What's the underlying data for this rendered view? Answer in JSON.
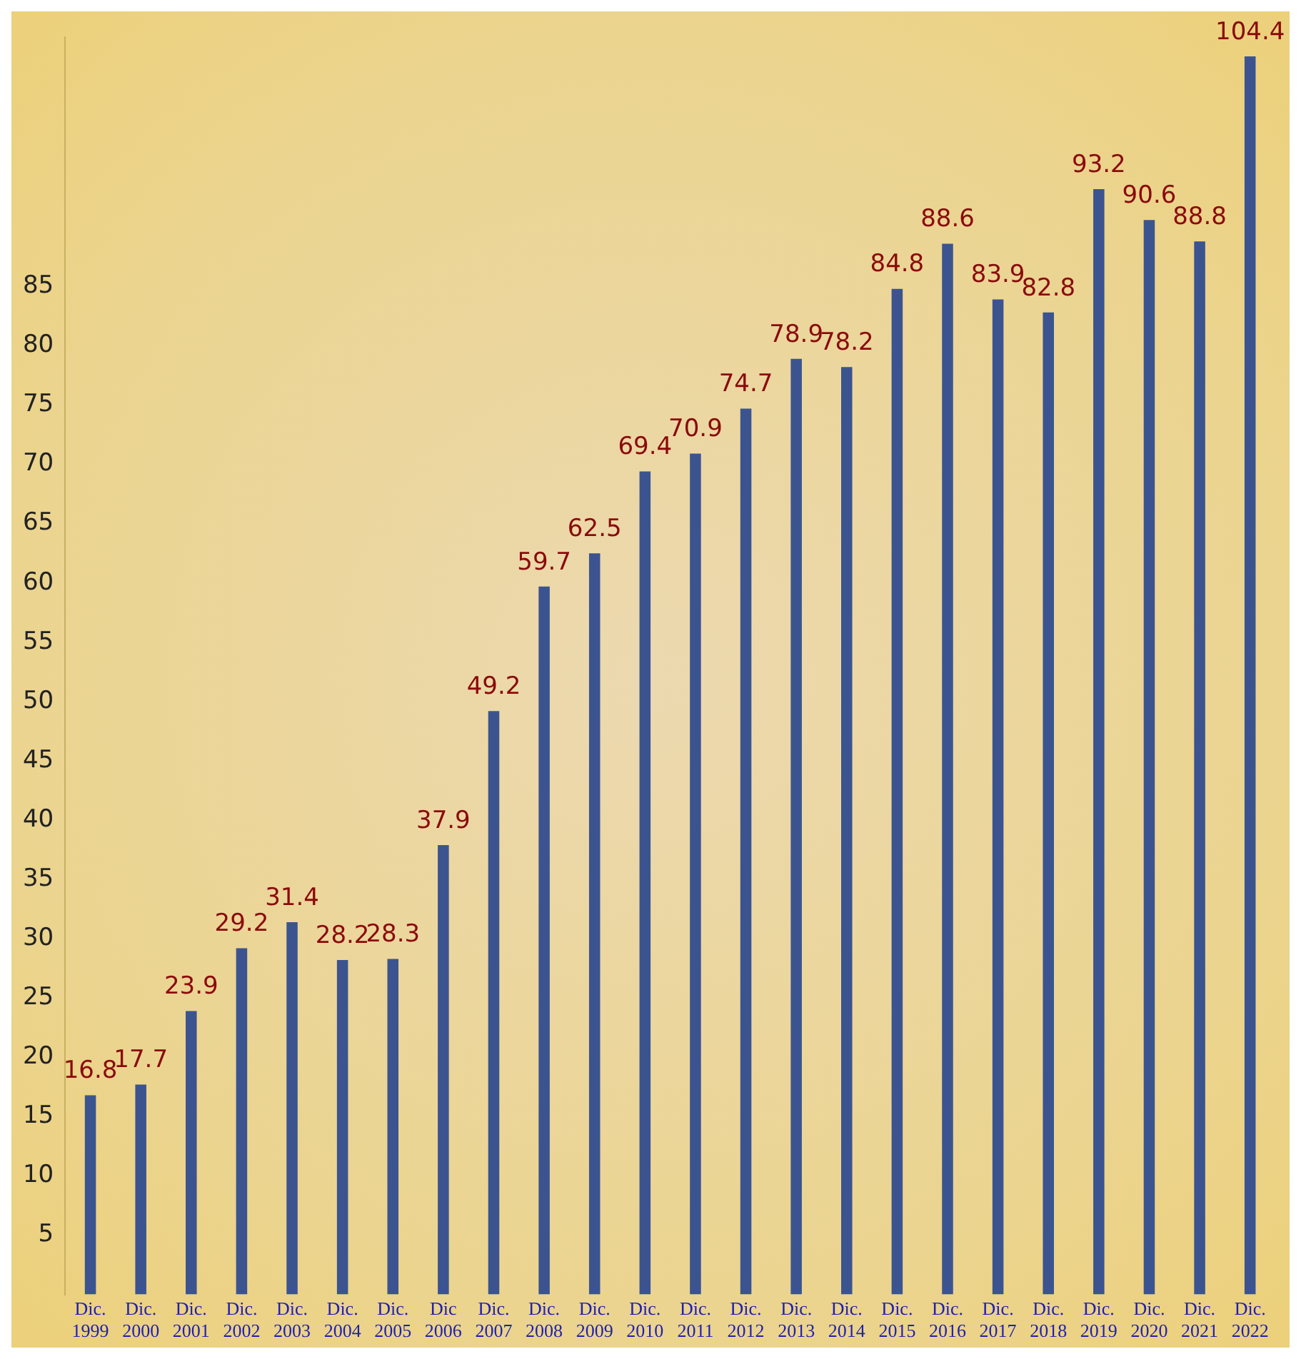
{
  "chart_data": {
    "type": "bar",
    "categories": [
      "Dic. 1999",
      "Dic. 2000",
      "Dic. 2001",
      "Dic. 2002",
      "Dic. 2003",
      "Dic. 2004",
      "Dic. 2005",
      "Dic 2006",
      "Dic. 2007",
      "Dic. 2008",
      "Dic. 2009",
      "Dic. 2010",
      "Dic. 2011",
      "Dic. 2012",
      "Dic. 2013",
      "Dic. 2014",
      "Dic. 2015",
      "Dic. 2016",
      "Dic. 2017",
      "Dic. 2018",
      "Dic. 2019",
      "Dic. 2020",
      "Dic. 2021",
      "Dic. 2022"
    ],
    "values": [
      16.8,
      17.7,
      23.9,
      29.2,
      31.4,
      28.2,
      28.3,
      37.9,
      49.2,
      59.7,
      62.5,
      69.4,
      70.9,
      74.7,
      78.9,
      78.2,
      84.8,
      88.6,
      83.9,
      82.8,
      93.2,
      90.6,
      88.8,
      104.4
    ],
    "color": "#3b5490",
    "data_labels": true,
    "ylim": [
      0,
      106
    ],
    "yticks": [
      5,
      10,
      15,
      20,
      25,
      30,
      35,
      40,
      45,
      50,
      55,
      60,
      65,
      70,
      75,
      80,
      85
    ],
    "grid": false,
    "legend": false
  }
}
